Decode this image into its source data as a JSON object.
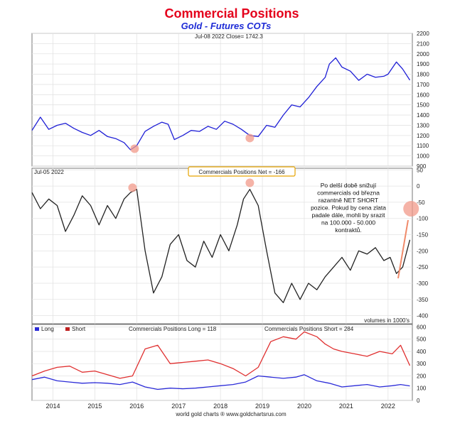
{
  "chart_data": {
    "title": "Commercial Positions",
    "subtitle": "Gold - Futures COTs",
    "credit": "world gold charts ® www.goldchartsrus.com",
    "x_axis": {
      "ticks": [
        "2014",
        "2015",
        "2016",
        "2017",
        "2018",
        "2019",
        "2020",
        "2021",
        "2022"
      ]
    },
    "panels": [
      {
        "type": "line",
        "header": "Jul-08  2022   Close= 1742.3",
        "ylim": [
          900,
          2200
        ],
        "yticks": [
          900,
          1000,
          1100,
          1200,
          1300,
          1400,
          1500,
          1600,
          1700,
          1800,
          1900,
          2000,
          2100,
          2200
        ],
        "series": [
          {
            "color": "#1f1fd6",
            "x": [
              2013.5,
              2013.7,
              2013.9,
              2014.1,
              2014.3,
              2014.5,
              2014.7,
              2014.9,
              2015.1,
              2015.3,
              2015.5,
              2015.7,
              2015.85,
              2016.0,
              2016.2,
              2016.4,
              2016.6,
              2016.75,
              2016.9,
              2017.1,
              2017.3,
              2017.5,
              2017.7,
              2017.9,
              2018.1,
              2018.3,
              2018.5,
              2018.7,
              2018.9,
              2019.1,
              2019.3,
              2019.5,
              2019.7,
              2019.9,
              2020.1,
              2020.3,
              2020.5,
              2020.6,
              2020.75,
              2020.9,
              2021.1,
              2021.3,
              2021.5,
              2021.7,
              2021.9,
              2022.0,
              2022.2,
              2022.35,
              2022.52
            ],
            "y": [
              1250,
              1380,
              1260,
              1300,
              1320,
              1270,
              1230,
              1200,
              1250,
              1190,
              1170,
              1130,
              1060,
              1100,
              1240,
              1290,
              1330,
              1310,
              1160,
              1200,
              1250,
              1240,
              1290,
              1260,
              1340,
              1310,
              1260,
              1200,
              1190,
              1300,
              1280,
              1400,
              1500,
              1480,
              1570,
              1680,
              1770,
              1900,
              1960,
              1870,
              1830,
              1740,
              1800,
              1770,
              1780,
              1800,
              1920,
              1850,
              1742
            ]
          }
        ],
        "markers": [
          {
            "x": 2015.95,
            "y": 1070
          },
          {
            "x": 2018.7,
            "y": 1175
          }
        ]
      },
      {
        "type": "line",
        "header": "Jul-05  2022",
        "label": "Commercials Positions Net = -166",
        "units": "volumes in 1000's",
        "ylim": [
          -425,
          55
        ],
        "yticks": [
          50,
          0,
          -50,
          -100,
          -150,
          -200,
          -250,
          -300,
          -350,
          -400
        ],
        "series": [
          {
            "color": "#222222",
            "x": [
              2013.5,
              2013.7,
              2013.9,
              2014.1,
              2014.3,
              2014.5,
              2014.7,
              2014.9,
              2015.1,
              2015.3,
              2015.5,
              2015.7,
              2015.85,
              2016.0,
              2016.2,
              2016.4,
              2016.6,
              2016.8,
              2017.0,
              2017.2,
              2017.4,
              2017.6,
              2017.8,
              2018.0,
              2018.2,
              2018.4,
              2018.55,
              2018.7,
              2018.9,
              2019.1,
              2019.3,
              2019.5,
              2019.7,
              2019.9,
              2020.1,
              2020.3,
              2020.5,
              2020.7,
              2020.9,
              2021.1,
              2021.3,
              2021.5,
              2021.7,
              2021.9,
              2022.05,
              2022.2,
              2022.35,
              2022.52
            ],
            "y": [
              -20,
              -70,
              -40,
              -60,
              -140,
              -90,
              -30,
              -60,
              -120,
              -60,
              -100,
              -40,
              -20,
              -10,
              -200,
              -330,
              -280,
              -180,
              -150,
              -230,
              -250,
              -170,
              -220,
              -150,
              -200,
              -120,
              -40,
              -10,
              -60,
              -200,
              -330,
              -360,
              -300,
              -350,
              -300,
              -320,
              -280,
              -250,
              -220,
              -260,
              -200,
              -210,
              -190,
              -230,
              -220,
              -270,
              -250,
              -166
            ]
          }
        ],
        "markers": [
          {
            "x": 2015.9,
            "y": -5
          },
          {
            "x": 2018.7,
            "y": 10
          },
          {
            "x": 2022.55,
            "y": -70
          }
        ],
        "annotation": "Po delší době snižují\ncommercials od března\nrazantně NET SHORT\npozice. Pokud by cena zlata\npadale dále, mohli by srazit\nna 100.000 - 50.000\nkontraktů."
      },
      {
        "type": "line",
        "ylim": [
          0,
          620
        ],
        "yticks": [
          0,
          100,
          200,
          300,
          400,
          500,
          600
        ],
        "legend": [
          "Long",
          "Short"
        ],
        "series": [
          {
            "name": "Long",
            "label": "Commercials Positions Long = 118",
            "color": "#2b2bd8",
            "x": [
              2013.5,
              2013.8,
              2014.1,
              2014.4,
              2014.7,
              2015.0,
              2015.3,
              2015.6,
              2015.9,
              2016.2,
              2016.5,
              2016.8,
              2017.1,
              2017.4,
              2017.7,
              2018.0,
              2018.3,
              2018.6,
              2018.9,
              2019.2,
              2019.5,
              2019.8,
              2020.0,
              2020.3,
              2020.6,
              2020.9,
              2021.2,
              2021.5,
              2021.8,
              2022.1,
              2022.3,
              2022.52
            ],
            "y": [
              170,
              190,
              160,
              150,
              140,
              145,
              140,
              130,
              150,
              110,
              90,
              100,
              95,
              100,
              110,
              120,
              130,
              150,
              200,
              190,
              180,
              190,
              210,
              160,
              140,
              110,
              120,
              130,
              110,
              120,
              130,
              118
            ]
          },
          {
            "name": "Short",
            "label": "Commercials Positions Short = 284",
            "color": "#e03030",
            "x": [
              2013.5,
              2013.8,
              2014.1,
              2014.4,
              2014.7,
              2015.0,
              2015.3,
              2015.6,
              2015.9,
              2016.2,
              2016.5,
              2016.8,
              2017.1,
              2017.4,
              2017.7,
              2018.0,
              2018.3,
              2018.6,
              2018.9,
              2019.2,
              2019.5,
              2019.8,
              2020.0,
              2020.3,
              2020.5,
              2020.7,
              2020.9,
              2021.2,
              2021.5,
              2021.8,
              2022.1,
              2022.3,
              2022.52
            ],
            "y": [
              200,
              240,
              270,
              280,
              230,
              240,
              210,
              180,
              200,
              420,
              450,
              300,
              310,
              320,
              330,
              300,
              260,
              200,
              270,
              480,
              520,
              500,
              560,
              520,
              460,
              420,
              400,
              380,
              360,
              400,
              380,
              450,
              284
            ]
          }
        ]
      }
    ]
  }
}
